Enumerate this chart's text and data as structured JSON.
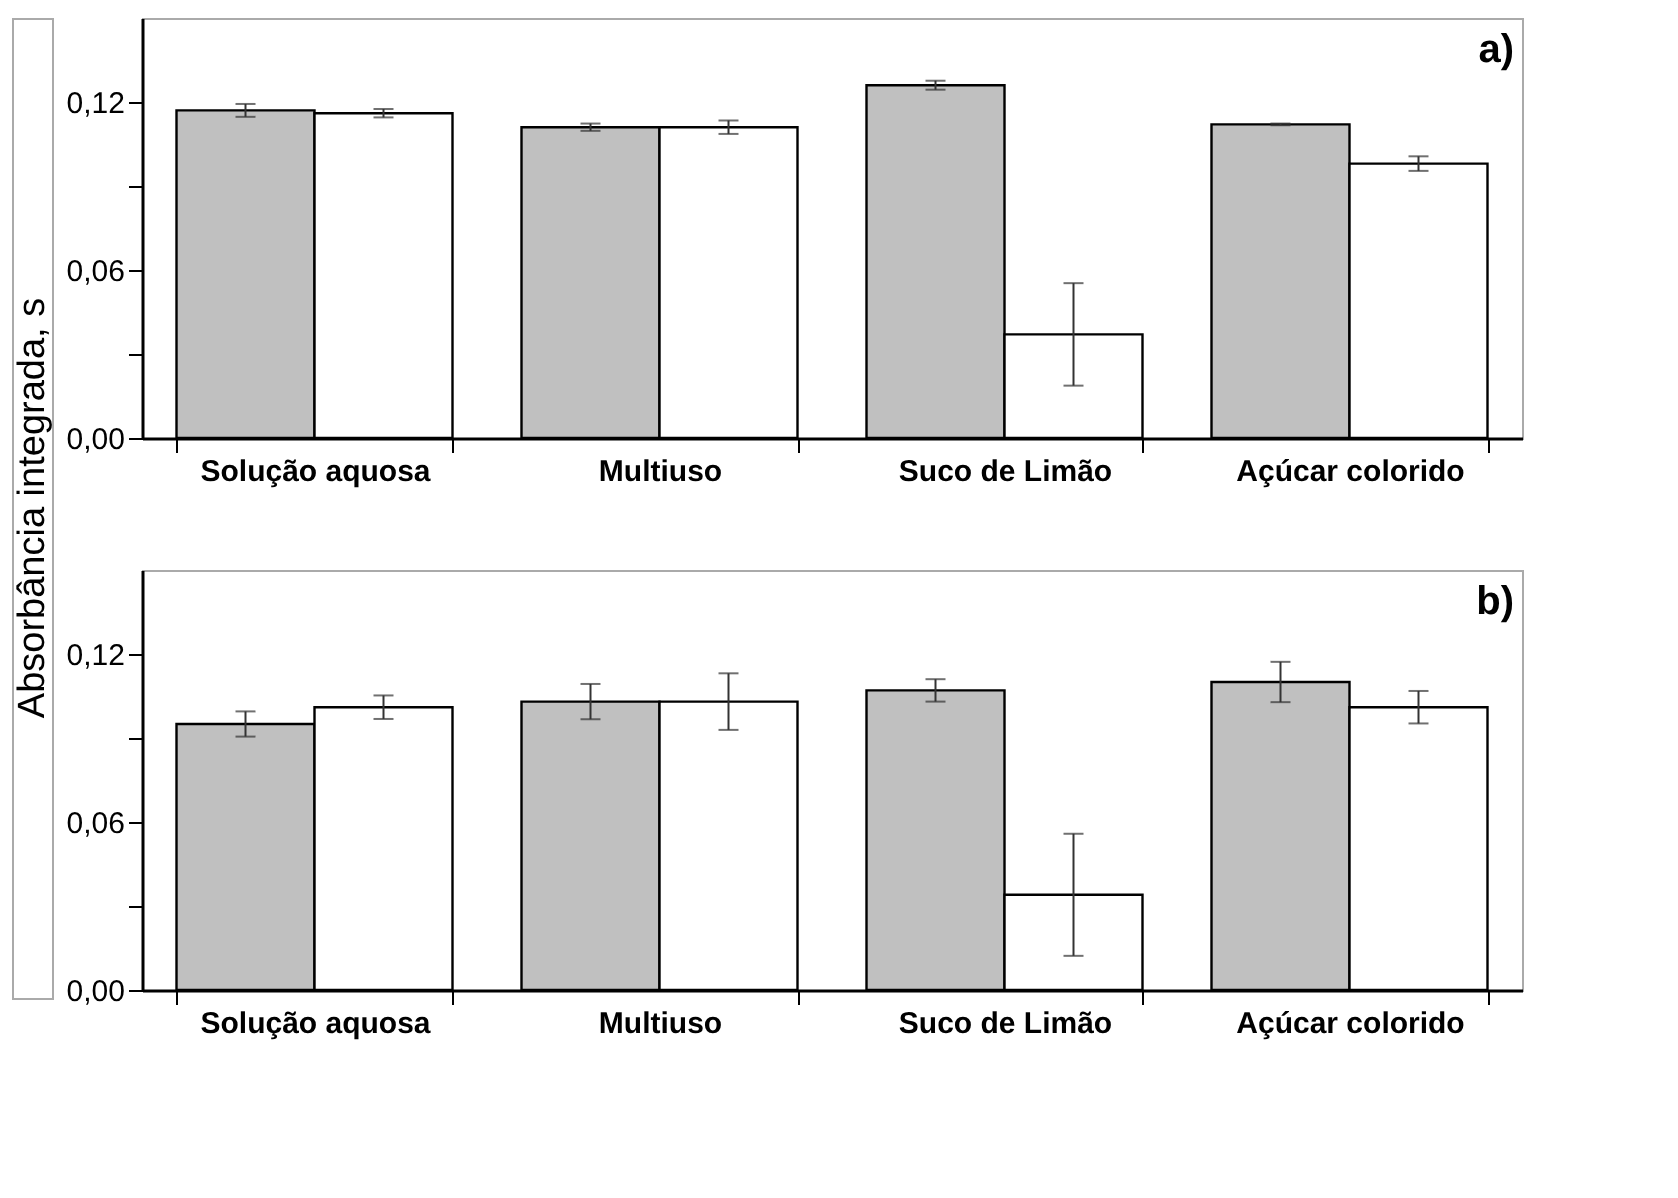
{
  "chart_data": [
    {
      "type": "bar",
      "ylabel": "Absorbância integrada, s",
      "annotations": [
        "a)"
      ],
      "categories": [
        "Solução aquosa",
        "Multiuso",
        "Suco de Limão",
        "Açúcar colorido"
      ],
      "ylim": [
        0,
        0.15
      ],
      "yticks": [
        {
          "value": 0,
          "label": "0,00"
        },
        {
          "value": 0.03,
          "label": null
        },
        {
          "value": 0.06,
          "label": "0,06"
        },
        {
          "value": 0.09,
          "label": null
        },
        {
          "value": 0.12,
          "label": "0,12"
        }
      ],
      "grid": false,
      "legend": false,
      "series": [
        {
          "color": "#c0c0c0",
          "values": [
            0.117,
            0.111,
            0.126,
            0.112
          ],
          "errors": [
            0.0023,
            0.0013,
            0.0016,
            0.0003
          ]
        },
        {
          "color": "#ffffff",
          "values": [
            0.116,
            0.111,
            0.037,
            0.098
          ],
          "errors": [
            0.0015,
            0.0024,
            0.0183,
            0.0026
          ]
        }
      ]
    },
    {
      "type": "bar",
      "annotations": [
        "b)"
      ],
      "categories": [
        "Solução aquosa",
        "Multiuso",
        "Suco de Limão",
        "Açúcar colorido"
      ],
      "ylim": [
        0,
        0.15
      ],
      "yticks": [
        {
          "value": 0,
          "label": "0,00"
        },
        {
          "value": 0.03,
          "label": null
        },
        {
          "value": 0.06,
          "label": "0,06"
        },
        {
          "value": 0.09,
          "label": null
        },
        {
          "value": 0.12,
          "label": "0,12"
        }
      ],
      "grid": false,
      "legend": false,
      "series": [
        {
          "color": "#c0c0c0",
          "values": [
            0.095,
            0.103,
            0.107,
            0.11
          ],
          "errors": [
            0.0045,
            0.0063,
            0.004,
            0.0072
          ]
        },
        {
          "color": "#ffffff",
          "values": [
            0.101,
            0.103,
            0.034,
            0.101
          ],
          "errors": [
            0.0042,
            0.0101,
            0.0218,
            0.0058
          ]
        }
      ]
    }
  ]
}
